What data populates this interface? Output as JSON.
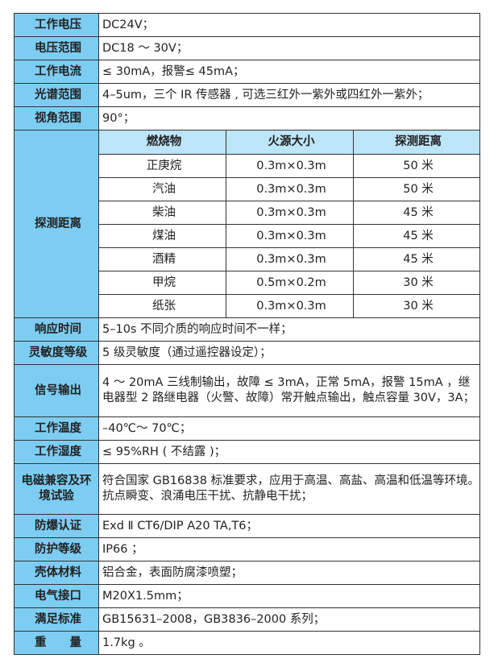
{
  "colors": {
    "label_bg": "#7dcdf2",
    "subheader_bg": "#bde5f8",
    "border": "#333333"
  },
  "rows_top": [
    {
      "label": "工作电压",
      "value": "DC24V；"
    },
    {
      "label": "电压范围",
      "value": "DC18 ～ 30V；"
    },
    {
      "label": "工作电流",
      "value": "≤ 30mA，报警≤ 45mA；"
    },
    {
      "label": "光谱范围",
      "value": "4–5um，三个 IR 传感器 , 可选三红外一紫外或四红外一紫外；"
    },
    {
      "label": "视角范围",
      "value": "90°；"
    }
  ],
  "detection": {
    "label": "探测距离",
    "headers": [
      "燃烧物",
      "火源大小",
      "探测距离"
    ],
    "rows": [
      [
        "正庚烷",
        "0.3m×0.3m",
        "50 米"
      ],
      [
        "汽油",
        "0.3m×0.3m",
        "50 米"
      ],
      [
        "柴油",
        "0.3m×0.3m",
        "45 米"
      ],
      [
        "煤油",
        "0.3m×0.3m",
        "45 米"
      ],
      [
        "酒精",
        "0.3m×0.3m",
        "45 米"
      ],
      [
        "甲烷",
        "0.5m×0.2m",
        "30 米"
      ],
      [
        "纸张",
        "0.3m×0.3m",
        "30 米"
      ]
    ]
  },
  "rows_bottom": [
    {
      "label": "响应时间",
      "value": "5–10s 不同介质的响应时间不一样；"
    },
    {
      "label": "灵敏度等级",
      "value": "5 级灵敏度（通过遥控器设定）；"
    },
    {
      "label": "信号输出",
      "value": "4 ～ 20mA 三线制输出，故障 ≤ 3mA，正常 5mA，报警 15mA ，继电器型 2 路继电器（火警、故障）常开触点输出，触点容量 30V，3A；"
    },
    {
      "label": "工作温度",
      "value": "–40℃～ 70℃；"
    },
    {
      "label": "工作湿度",
      "value": "≤ 95%RH ( 不结露 )；"
    },
    {
      "label": "电磁兼容及环境试验",
      "value": "符合国家 GB16838 标准要求，应用于高温、高盐、高温和低温等环境。抗点瞬变、浪涌电压干扰、抗静电干扰；"
    },
    {
      "label": "防爆认证",
      "value": "Exd Ⅱ CT6/DIP A20 TA,T6；"
    },
    {
      "label": "防护等级",
      "value": "IP66 ；"
    },
    {
      "label": "壳体材料",
      "value": "铝合金，表面防腐漆喷塑；"
    },
    {
      "label": "电气接口",
      "value": "M20X1.5mm；"
    },
    {
      "label": "满足标准",
      "value": "GB15631–2008，GB3836–2000 系列；"
    },
    {
      "label": "重　　量",
      "value": "1.7kg 。"
    }
  ]
}
